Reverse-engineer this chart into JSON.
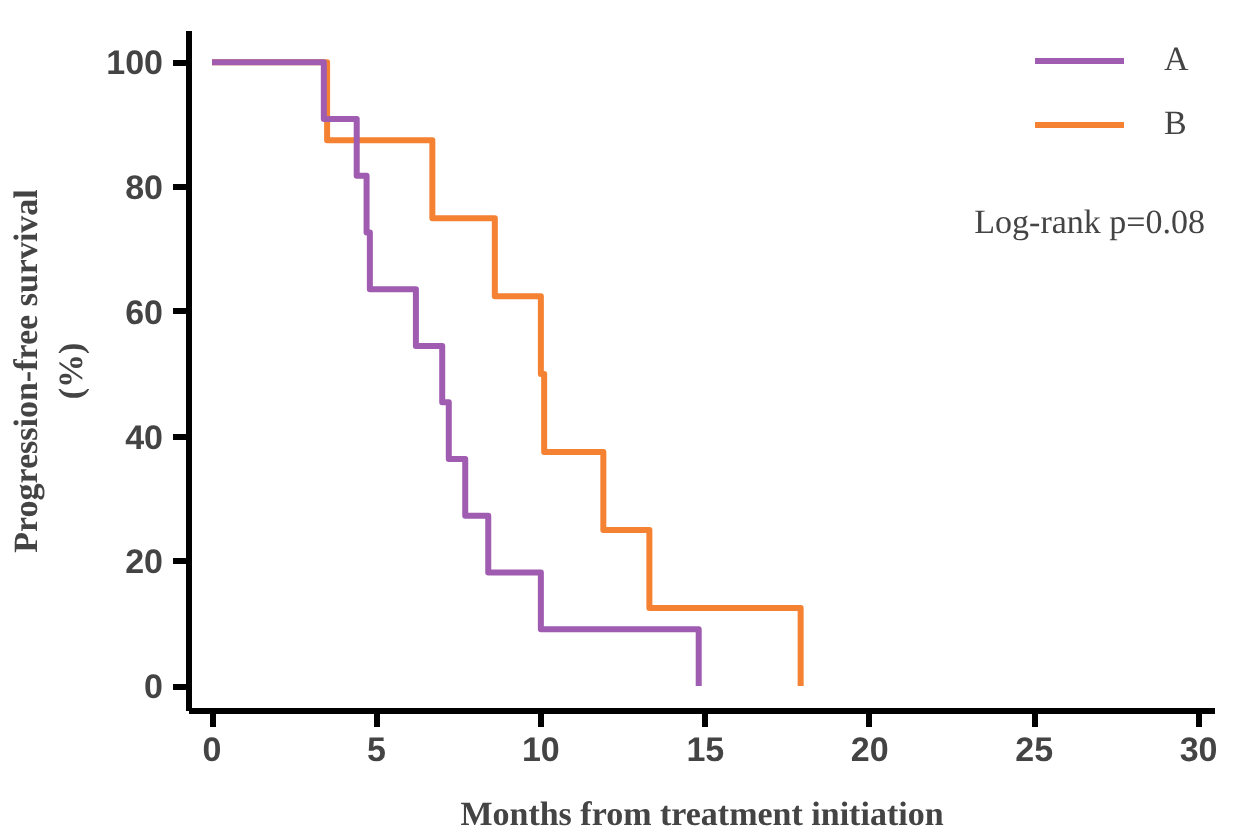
{
  "chart_data": {
    "type": "step",
    "xlabel": "Months from treatment initiation",
    "ylabel": "Progression-free survival\n(%)",
    "xlim": [
      -0.7,
      30.5
    ],
    "ylim": [
      -4,
      105
    ],
    "xticks": [
      0,
      5,
      10,
      15,
      20,
      25,
      30
    ],
    "yticks": [
      0,
      20,
      40,
      60,
      80,
      100
    ],
    "grid": false,
    "legend": "top right",
    "marker": "none",
    "line_style": "solid",
    "annotations": [
      "Log-rank p=0.08"
    ],
    "series": [
      {
        "name": "A",
        "color": "#a05cb0",
        "x": [
          0,
          3.4,
          4.4,
          4.7,
          4.8,
          6.2,
          7.0,
          7.2,
          7.7,
          8.4,
          10.0,
          14.8,
          14.8
        ],
        "values": [
          100,
          90.9,
          81.8,
          72.7,
          63.6,
          54.5,
          45.5,
          36.4,
          27.3,
          18.2,
          9.1,
          9.1,
          0
        ]
      },
      {
        "name": "B",
        "color": "#f58232",
        "x": [
          0,
          3.5,
          6.7,
          8.6,
          10.0,
          10.1,
          11.9,
          13.3,
          17.9,
          17.9
        ],
        "values": [
          100,
          87.5,
          75,
          62.5,
          50,
          37.5,
          25,
          12.5,
          12.5,
          0
        ]
      }
    ]
  }
}
